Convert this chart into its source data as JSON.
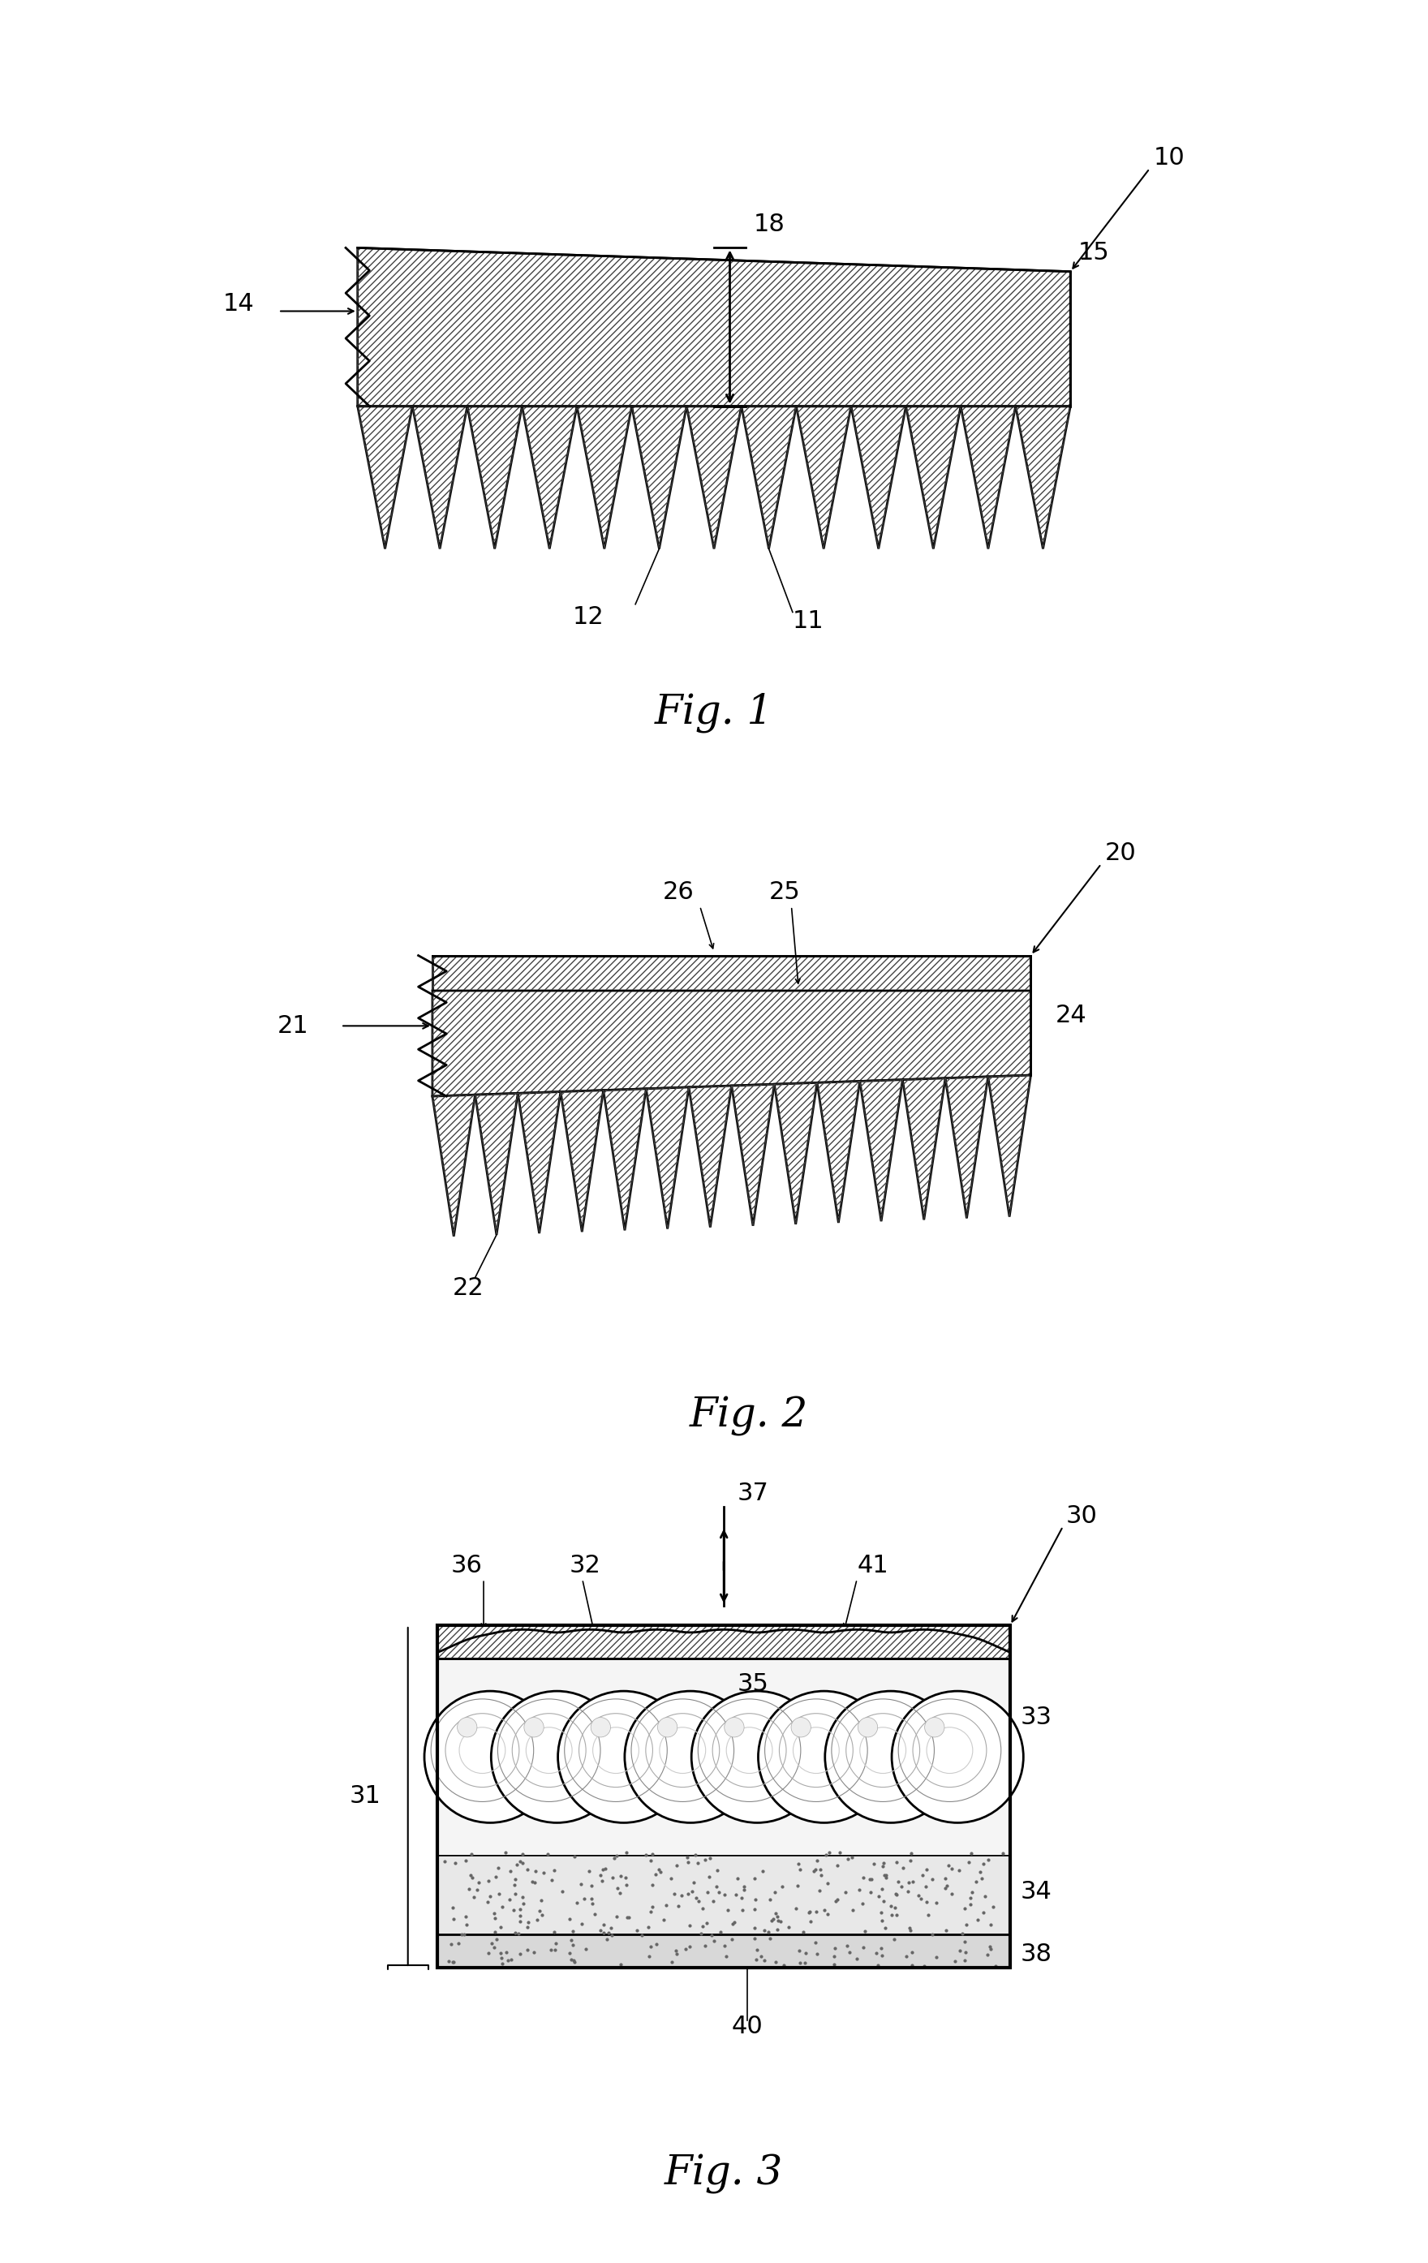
{
  "bg_color": "#ffffff",
  "line_color": "#000000",
  "fig_width": 17.6,
  "fig_height": 27.89,
  "fig1_label": "Fig. 1",
  "fig2_label": "Fig. 2",
  "fig3_label": "Fig. 3",
  "font_size_ref": 22,
  "font_size_fig": 36
}
